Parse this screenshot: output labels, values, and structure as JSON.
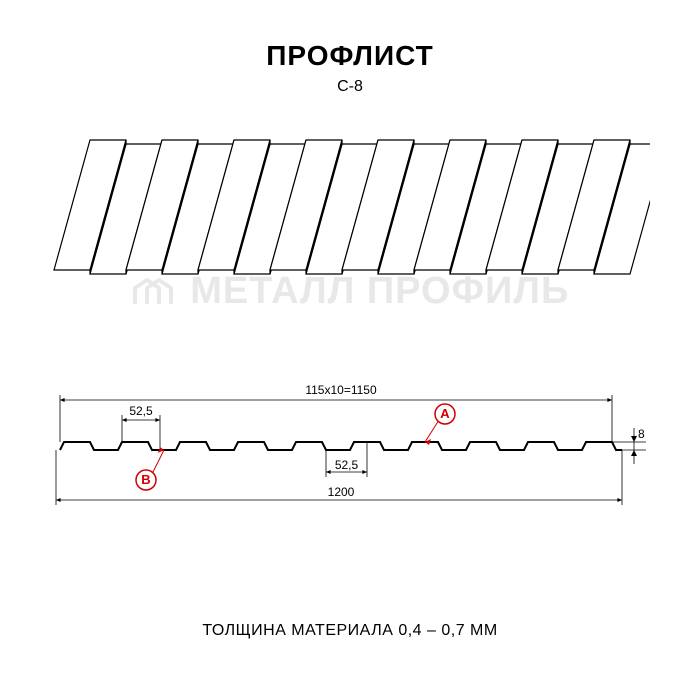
{
  "title": "ПРОФЛИСТ",
  "subtitle": "С-8",
  "footer": "ТОЛЩИНА МАТЕРИАЛА 0,4 – 0,7 ММ",
  "watermark_text": "МЕТАЛЛ ПРОФИЛЬ",
  "iso_view": {
    "rib_count": 8,
    "rib_top_width": 36,
    "valley_width": 36,
    "skew_dx": 36,
    "height": 130,
    "stroke": "#000000",
    "stroke_width": 1.2,
    "fill": "#ffffff"
  },
  "cross_section": {
    "profile_stroke": "#000000",
    "profile_stroke_width": 2,
    "dim_stroke": "#000000",
    "dim_stroke_width": 0.8,
    "marker_stroke": "#d00000",
    "marker_radius": 10,
    "rib_count": 10,
    "rib_top_w": 26,
    "rib_slope_w": 4,
    "valley_w": 24,
    "rib_h": 8,
    "dimensions": {
      "overall_top": "115x10=1150",
      "seg_top": "52,5",
      "seg_bottom": "52,5",
      "overall_bottom": "1200",
      "height": "8"
    },
    "markers": {
      "A": "A",
      "B": "B"
    }
  },
  "colors": {
    "bg": "#ffffff",
    "text": "#000000",
    "watermark": "#e8e8e8",
    "accent": "#d00000"
  }
}
